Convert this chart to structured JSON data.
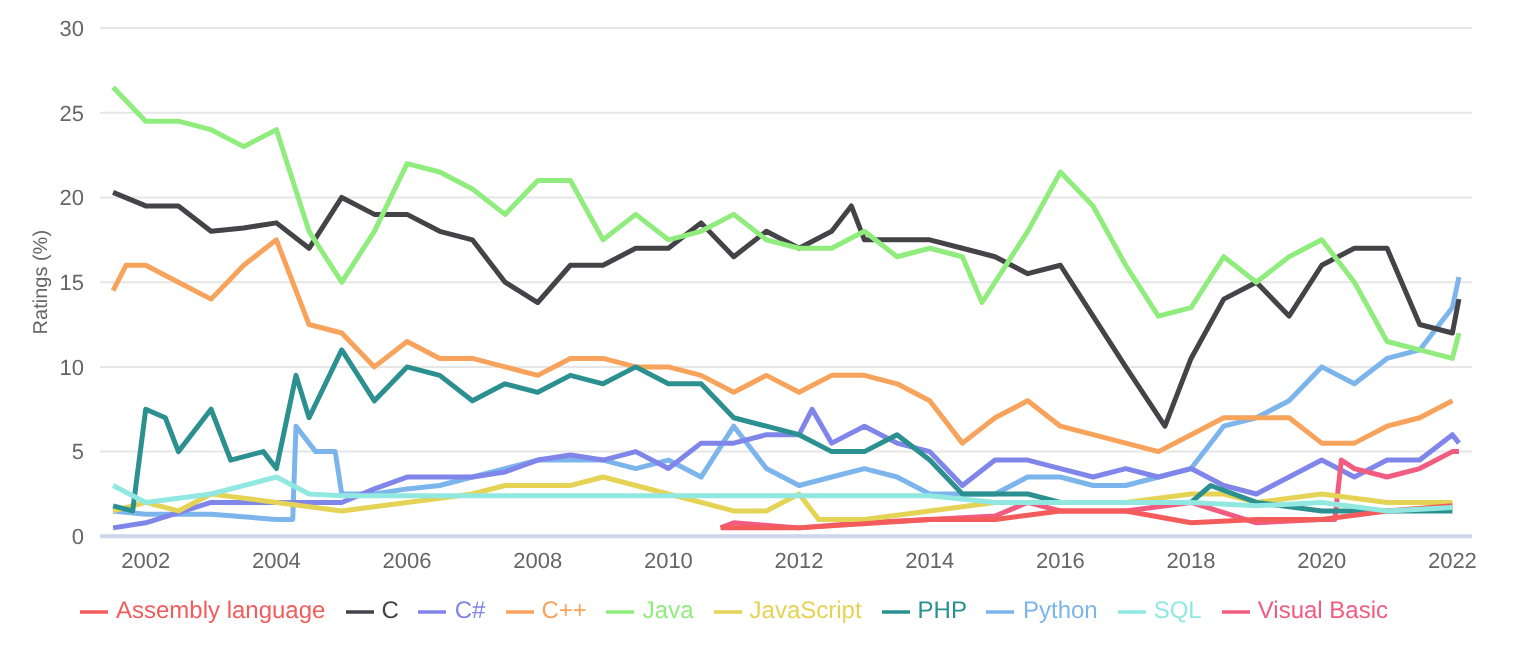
{
  "chart_data": {
    "type": "line",
    "ylabel": "Ratings (%)",
    "xlim": [
      2001.3,
      2022.3
    ],
    "xticks": [
      2002,
      2004,
      2006,
      2008,
      2010,
      2012,
      2014,
      2016,
      2018,
      2020,
      2022
    ],
    "ylim": [
      0,
      30
    ],
    "yticks": [
      0,
      5,
      10,
      15,
      20,
      25,
      30
    ],
    "grid": "y",
    "legend": "bottom",
    "marker": "none",
    "line_style": "solid",
    "series": [
      {
        "name": "Python",
        "color": "#7cb5ec",
        "x": [
          2001.5,
          2002,
          2003,
          2004,
          2004.25,
          2004.3,
          2004.6,
          2004.9,
          2005,
          2005.5,
          2006,
          2006.5,
          2007,
          2007.5,
          2008,
          2008.5,
          2009,
          2009.5,
          2010,
          2010.5,
          2011,
          2011.5,
          2012,
          2012.5,
          2013,
          2013.5,
          2014,
          2014.5,
          2015,
          2015.5,
          2016,
          2016.5,
          2017,
          2017.5,
          2018,
          2018.5,
          2019,
          2019.5,
          2020,
          2020.5,
          2021,
          2021.5,
          2022,
          2022.1
        ],
        "values": [
          1.5,
          1.3,
          1.3,
          1,
          1,
          6.5,
          5,
          5,
          2.5,
          2.5,
          2.8,
          3,
          3.5,
          4,
          4.5,
          4.5,
          4.5,
          4,
          4.5,
          3.5,
          6.5,
          4,
          3,
          3.5,
          4,
          3.5,
          2.5,
          2.5,
          2.5,
          3.5,
          3.5,
          3,
          3,
          3.5,
          4,
          6.5,
          7,
          8,
          10,
          9,
          10.5,
          11,
          13.5,
          15.3
        ]
      },
      {
        "name": "C",
        "color": "#434348",
        "x": [
          2001.5,
          2002,
          2002.5,
          2003,
          2003.5,
          2004,
          2004.5,
          2005,
          2005.5,
          2006,
          2006.5,
          2007,
          2007.5,
          2008,
          2008.5,
          2009,
          2009.5,
          2010,
          2010.5,
          2011,
          2011.5,
          2012,
          2012.5,
          2012.8,
          2013,
          2013.5,
          2014,
          2014.5,
          2015,
          2015.5,
          2016,
          2016.5,
          2017,
          2017.6,
          2018,
          2018.5,
          2019,
          2019.5,
          2020,
          2020.5,
          2021,
          2021.5,
          2022,
          2022.1
        ],
        "values": [
          20.3,
          19.5,
          19.5,
          18,
          18.2,
          18.5,
          17,
          20,
          19,
          19,
          18,
          17.5,
          15,
          13.8,
          16,
          16,
          17,
          17,
          18.5,
          16.5,
          18,
          17,
          18,
          19.5,
          17.5,
          17.5,
          17.5,
          17,
          16.5,
          15.5,
          16,
          13,
          10,
          6.5,
          10.5,
          14,
          15,
          13,
          16,
          17,
          17,
          12.5,
          12,
          14
        ]
      },
      {
        "name": "Java",
        "color": "#90ed7d",
        "x": [
          2001.5,
          2002,
          2002.5,
          2003,
          2003.5,
          2004,
          2004.5,
          2005,
          2005.5,
          2006,
          2006.5,
          2007,
          2007.5,
          2008,
          2008.5,
          2009,
          2009.5,
          2010,
          2010.5,
          2011,
          2011.5,
          2012,
          2012.5,
          2013,
          2013.5,
          2014,
          2014.5,
          2014.8,
          2015.5,
          2016,
          2016.5,
          2017,
          2017.5,
          2018,
          2018.5,
          2019,
          2019.5,
          2020,
          2020.5,
          2021,
          2021.5,
          2022,
          2022.1
        ],
        "values": [
          26.5,
          24.5,
          24.5,
          24,
          23,
          24,
          18,
          15,
          18,
          22,
          21.5,
          20.5,
          19,
          21,
          21,
          17.5,
          19,
          17.5,
          18,
          19,
          17.5,
          17,
          17,
          18,
          16.5,
          17,
          16.5,
          13.8,
          18,
          21.5,
          19.5,
          16,
          13,
          13.5,
          16.5,
          15,
          16.5,
          17.5,
          15,
          11.5,
          11,
          10.5,
          12
        ]
      },
      {
        "name": "C++",
        "color": "#f7a35c",
        "x": [
          2001.5,
          2001.7,
          2002,
          2002.5,
          2003,
          2003.5,
          2004,
          2004.5,
          2005,
          2005.5,
          2006,
          2006.5,
          2007,
          2007.5,
          2008,
          2008.5,
          2009,
          2009.5,
          2010,
          2010.5,
          2011,
          2011.5,
          2012,
          2012.5,
          2013,
          2013.5,
          2014,
          2014.5,
          2015,
          2015.5,
          2016,
          2016.5,
          2017,
          2017.5,
          2018,
          2018.5,
          2019,
          2019.5,
          2020,
          2020.5,
          2021,
          2021.5,
          2022
        ],
        "values": [
          14.5,
          16,
          16,
          15,
          14,
          16,
          17.5,
          12.5,
          12,
          10,
          11.5,
          10.5,
          10.5,
          10,
          9.5,
          10.5,
          10.5,
          10,
          10,
          9.5,
          8.5,
          9.5,
          8.5,
          9.5,
          9.5,
          9,
          8,
          5.5,
          7,
          8,
          6.5,
          6,
          5.5,
          5,
          6,
          7,
          7,
          7,
          5.5,
          5.5,
          6.5,
          7,
          8
        ]
      },
      {
        "name": "C#",
        "color": "#8085e9",
        "x": [
          2001.5,
          2002,
          2003,
          2004,
          2005,
          2005.5,
          2006,
          2006.5,
          2007,
          2007.5,
          2008,
          2008.5,
          2009,
          2009.5,
          2010,
          2010.5,
          2011,
          2011.5,
          2012,
          2012.2,
          2012.5,
          2013,
          2013.5,
          2014,
          2014.5,
          2015,
          2015.5,
          2016,
          2016.5,
          2017,
          2017.5,
          2018,
          2018.5,
          2019,
          2019.5,
          2020,
          2020.5,
          2021,
          2021.5,
          2022,
          2022.1
        ],
        "values": [
          0.5,
          0.8,
          2,
          2,
          2,
          2.8,
          3.5,
          3.5,
          3.5,
          3.8,
          4.5,
          4.8,
          4.5,
          5,
          4,
          5.5,
          5.5,
          6,
          6,
          7.5,
          5.5,
          6.5,
          5.5,
          5,
          3,
          4.5,
          4.5,
          4,
          3.5,
          4,
          3.5,
          4,
          3,
          2.5,
          3.5,
          4.5,
          3.5,
          4.5,
          4.5,
          6,
          5.5
        ]
      },
      {
        "name": "Visual Basic",
        "color": "#f15c80",
        "x": [
          2010.8,
          2011,
          2012,
          2013,
          2014,
          2015,
          2015.5,
          2016,
          2017,
          2018,
          2019,
          2020,
          2020.2,
          2020.3,
          2020.5,
          2021,
          2021.5,
          2022,
          2022.1
        ],
        "values": [
          0.5,
          0.8,
          0.5,
          0.8,
          1,
          1.2,
          2,
          1.5,
          1.5,
          2,
          0.8,
          1,
          1,
          4.5,
          4,
          3.5,
          4,
          5,
          5
        ]
      },
      {
        "name": "JavaScript",
        "color": "#e4d354",
        "x": [
          2001.5,
          2002,
          2002.5,
          2003,
          2004,
          2005,
          2006,
          2007,
          2007.5,
          2008,
          2008.5,
          2009,
          2009.5,
          2010,
          2010.5,
          2011,
          2011.5,
          2012,
          2012.3,
          2013,
          2014,
          2015,
          2016,
          2017,
          2018,
          2018.5,
          2019,
          2020,
          2021,
          2022
        ],
        "values": [
          1.5,
          2,
          1.5,
          2.5,
          2,
          1.5,
          2,
          2.5,
          3,
          3,
          3,
          3.5,
          3,
          2.5,
          2,
          1.5,
          1.5,
          2.5,
          1,
          1,
          1.5,
          2,
          2,
          2,
          2.5,
          2.5,
          2,
          2.5,
          2,
          2
        ]
      },
      {
        "name": "PHP",
        "color": "#2b908f",
        "x": [
          2001.5,
          2001.8,
          2002,
          2002.3,
          2002.5,
          2003,
          2003.3,
          2003.8,
          2004,
          2004.3,
          2004.5,
          2005,
          2005.5,
          2006,
          2006.5,
          2007,
          2007.5,
          2008,
          2008.5,
          2009,
          2009.5,
          2010,
          2010.5,
          2011,
          2011.5,
          2012,
          2012.5,
          2013,
          2013.5,
          2014,
          2014.5,
          2015,
          2015.5,
          2016,
          2017,
          2018,
          2018.3,
          2019,
          2020,
          2021,
          2022
        ],
        "values": [
          1.8,
          1.5,
          7.5,
          7,
          5,
          7.5,
          4.5,
          5,
          4,
          9.5,
          7,
          11,
          8,
          10,
          9.5,
          8,
          9,
          8.5,
          9.5,
          9,
          10,
          9,
          9,
          7,
          6.5,
          6,
          5,
          5,
          6,
          4.5,
          2.5,
          2.5,
          2.5,
          2,
          2,
          2,
          3,
          2,
          1.5,
          1.5,
          1.5
        ]
      },
      {
        "name": "Assembly language",
        "color": "#f45b5b",
        "x": [
          2010.8,
          2012,
          2014,
          2015,
          2016,
          2017,
          2018,
          2019,
          2020,
          2021,
          2022
        ],
        "values": [
          0.5,
          0.5,
          1,
          1,
          1.5,
          1.5,
          0.8,
          1,
          1,
          1.5,
          1.8
        ]
      },
      {
        "name": "SQL",
        "color": "#91e8e1",
        "x": [
          2001.5,
          2002,
          2003,
          2004,
          2004.5,
          2005,
          2014,
          2015,
          2016,
          2018,
          2019,
          2020,
          2021,
          2022
        ],
        "values": [
          3,
          2,
          2.5,
          3.5,
          2.5,
          2.4,
          2.4,
          2,
          2,
          2,
          1.8,
          2,
          1.5,
          1.7
        ]
      }
    ]
  }
}
